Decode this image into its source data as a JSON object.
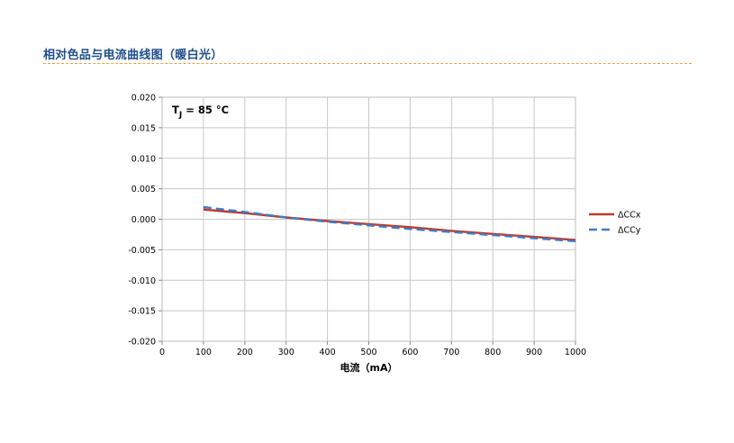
{
  "page": {
    "heading": "相对色品与电流曲线图（暖白光）"
  },
  "chart_data": {
    "type": "line",
    "title": "",
    "annotation": {
      "main": "T",
      "sub": "J",
      "rest": " = 85 °C"
    },
    "xlabel": "电流（mA）",
    "ylabel": "",
    "xlim": [
      0,
      1000
    ],
    "ylim": [
      -0.02,
      0.02
    ],
    "x_ticks": [
      0,
      100,
      200,
      300,
      400,
      500,
      600,
      700,
      800,
      900,
      1000
    ],
    "y_ticks": [
      -0.02,
      -0.015,
      -0.01,
      -0.005,
      0.0,
      0.005,
      0.01,
      0.015,
      0.02
    ],
    "y_tick_labels": [
      "-0.020",
      "-0.015",
      "-0.010",
      "-0.005",
      "0.000",
      "0.005",
      "0.010",
      "0.015",
      "0.020"
    ],
    "grid": true,
    "legend_position": "right",
    "series": [
      {
        "name": "ΔCCx",
        "color": "#c0392b",
        "dash": "solid",
        "x": [
          100,
          200,
          300,
          400,
          500,
          600,
          700,
          800,
          900,
          1000
        ],
        "y": [
          0.0016,
          0.001,
          0.0003,
          -0.0003,
          -0.0008,
          -0.0013,
          -0.0019,
          -0.0024,
          -0.0029,
          -0.0034
        ]
      },
      {
        "name": "ΔCCy",
        "color": "#3d7cc9",
        "dash": "dashed",
        "x": [
          100,
          200,
          300,
          400,
          500,
          600,
          700,
          800,
          900,
          1000
        ],
        "y": [
          0.002,
          0.0012,
          0.0003,
          -0.0004,
          -0.001,
          -0.0016,
          -0.0021,
          -0.0026,
          -0.0031,
          -0.0036
        ]
      }
    ]
  }
}
